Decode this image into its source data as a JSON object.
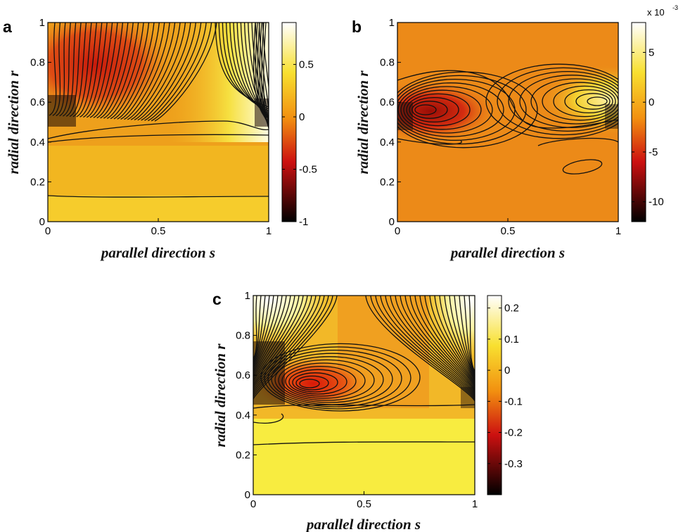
{
  "figure": {
    "panel_letters": [
      "a",
      "b",
      "c"
    ]
  },
  "chart_data": [
    {
      "type": "heatmap",
      "panel": "a",
      "xlabel": "parallel direction s",
      "ylabel": "radial direction r",
      "xlim": [
        0,
        1
      ],
      "ylim": [
        0,
        1
      ],
      "x_ticks": [
        "0",
        "0.5",
        "1"
      ],
      "y_ticks": [
        "0",
        "0.2",
        "0.4",
        "0.6",
        "0.8",
        "1"
      ],
      "colorbar": {
        "min": -1,
        "max": 0.9,
        "ticks": [
          "0.5",
          "0",
          "-0.5",
          "-1"
        ],
        "tick_values": [
          0.5,
          0,
          -0.5,
          -1
        ],
        "multiplier": "",
        "multiplier_exp": ""
      },
      "colormap": "hot",
      "contours": true
    },
    {
      "type": "heatmap",
      "panel": "b",
      "xlabel": "parallel direction s",
      "ylabel": "radial direction r",
      "xlim": [
        0,
        1
      ],
      "ylim": [
        0,
        1
      ],
      "x_ticks": [
        "0",
        "0.5",
        "1"
      ],
      "y_ticks": [
        "0",
        "0.2",
        "0.4",
        "0.6",
        "0.8",
        "1"
      ],
      "colorbar": {
        "min": -12,
        "max": 8,
        "ticks": [
          "5",
          "0",
          "-5",
          "-10"
        ],
        "tick_values": [
          5,
          0,
          -5,
          -10
        ],
        "multiplier": "x 10",
        "multiplier_exp": "-3"
      },
      "colormap": "hot",
      "contours": true
    },
    {
      "type": "heatmap",
      "panel": "c",
      "xlabel": "parallel direction s",
      "ylabel": "radial direction r",
      "xlim": [
        0,
        1
      ],
      "ylim": [
        0,
        1
      ],
      "x_ticks": [
        "0",
        "0.5",
        "1"
      ],
      "y_ticks": [
        "0",
        "0.2",
        "0.4",
        "0.6",
        "0.8",
        "1"
      ],
      "colorbar": {
        "min": -0.4,
        "max": 0.24,
        "ticks": [
          "0.2",
          "0.1",
          "0",
          "-0.1",
          "-0.2",
          "-0.3"
        ],
        "tick_values": [
          0.2,
          0.1,
          0,
          -0.1,
          -0.2,
          -0.3
        ],
        "multiplier": "",
        "multiplier_exp": ""
      },
      "colormap": "hot",
      "contours": true
    }
  ]
}
